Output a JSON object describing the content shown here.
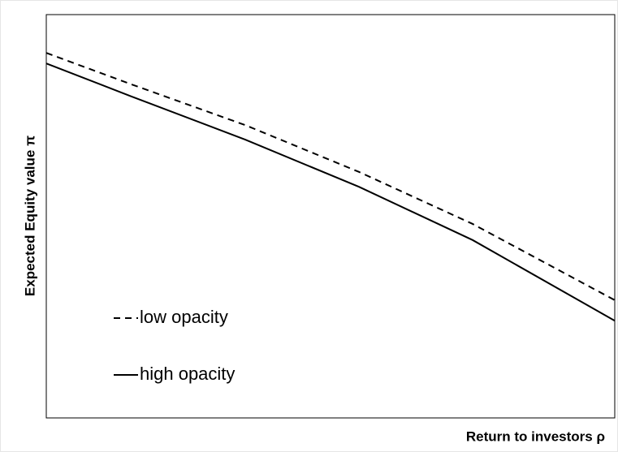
{
  "chart_data": {
    "type": "line",
    "x_label": "Return to investors ρ",
    "y_label": "Expected Equity value π",
    "x": [
      0,
      15,
      35,
      55,
      75,
      100
    ],
    "xlim": [
      0,
      100
    ],
    "ylim": [
      0,
      100
    ],
    "series": [
      {
        "name": "low opacity",
        "color": "#000000",
        "dash": true,
        "values": [
          90.5,
          82.7,
          72.6,
          61.0,
          48.1,
          29.2
        ]
      },
      {
        "name": "high opacity",
        "color": "#000000",
        "dash": false,
        "values": [
          87.9,
          79.7,
          69.0,
          57.3,
          44.1,
          24.1
        ]
      }
    ],
    "legend": "lower left"
  }
}
